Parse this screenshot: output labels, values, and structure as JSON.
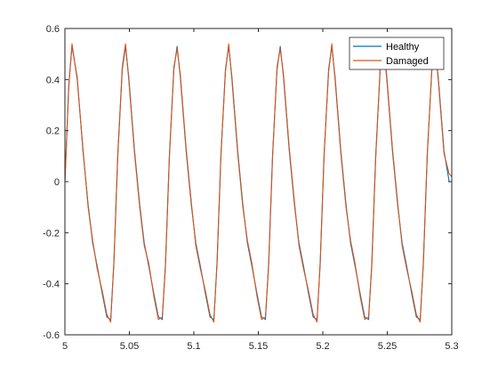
{
  "chart_data": {
    "type": "line",
    "title": "",
    "xlabel": "",
    "ylabel": "",
    "xlim": [
      5,
      5.3
    ],
    "ylim": [
      -0.6,
      0.6
    ],
    "x_ticks": [
      5,
      5.05,
      5.1,
      5.15,
      5.2,
      5.25,
      5.3
    ],
    "x_tick_labels": [
      "5",
      "5.05",
      "5.1",
      "5.15",
      "5.2",
      "5.25",
      "5.3"
    ],
    "y_ticks": [
      -0.6,
      -0.4,
      -0.2,
      0,
      0.2,
      0.4,
      0.6
    ],
    "y_tick_labels": [
      "-0.6",
      "-0.4",
      "-0.2",
      "0",
      "0.2",
      "0.4",
      "0.6"
    ],
    "grid": false,
    "legend_position": "top-right",
    "series": [
      {
        "name": "Healthy",
        "color": "#0072BD",
        "x": [
          5.0,
          5.003,
          5.0055,
          5.0095,
          5.014,
          5.018,
          5.0215,
          5.025,
          5.029,
          5.0325,
          5.0355,
          5.038,
          5.041,
          5.0445,
          5.047,
          5.0495,
          5.054,
          5.058,
          5.0615,
          5.065,
          5.069,
          5.0725,
          5.0755,
          5.078,
          5.081,
          5.0845,
          5.087,
          5.0895,
          5.094,
          5.098,
          5.1015,
          5.105,
          5.109,
          5.1125,
          5.1155,
          5.118,
          5.121,
          5.1245,
          5.127,
          5.1295,
          5.134,
          5.138,
          5.1415,
          5.145,
          5.149,
          5.1525,
          5.1555,
          5.158,
          5.161,
          5.1645,
          5.167,
          5.1695,
          5.174,
          5.178,
          5.1815,
          5.185,
          5.189,
          5.1925,
          5.1955,
          5.198,
          5.201,
          5.2045,
          5.207,
          5.2095,
          5.214,
          5.218,
          5.2215,
          5.225,
          5.229,
          5.2325,
          5.2355,
          5.238,
          5.241,
          5.2445,
          5.247,
          5.2495,
          5.254,
          5.258,
          5.2615,
          5.265,
          5.269,
          5.2725,
          5.2755,
          5.278,
          5.281,
          5.2845,
          5.287,
          5.2895,
          5.294,
          5.298,
          5.3
        ],
        "y": [
          0.0,
          0.38,
          0.53,
          0.41,
          0.12,
          -0.09,
          -0.24,
          -0.33,
          -0.44,
          -0.53,
          -0.54,
          -0.32,
          0.1,
          0.44,
          0.53,
          0.41,
          0.12,
          -0.09,
          -0.24,
          -0.33,
          -0.44,
          -0.53,
          -0.54,
          -0.32,
          0.1,
          0.44,
          0.53,
          0.41,
          0.12,
          -0.09,
          -0.24,
          -0.33,
          -0.44,
          -0.53,
          -0.54,
          -0.32,
          0.1,
          0.44,
          0.53,
          0.41,
          0.12,
          -0.09,
          -0.24,
          -0.33,
          -0.44,
          -0.53,
          -0.54,
          -0.32,
          0.1,
          0.44,
          0.53,
          0.41,
          0.12,
          -0.09,
          -0.24,
          -0.33,
          -0.44,
          -0.53,
          -0.54,
          -0.32,
          0.1,
          0.44,
          0.53,
          0.41,
          0.12,
          -0.09,
          -0.24,
          -0.33,
          -0.44,
          -0.53,
          -0.54,
          -0.32,
          0.1,
          0.44,
          0.53,
          0.41,
          0.12,
          -0.09,
          -0.24,
          -0.33,
          -0.44,
          -0.53,
          -0.54,
          -0.32,
          0.1,
          0.44,
          0.53,
          0.41,
          0.12,
          0.0,
          0.0
        ]
      },
      {
        "name": "Damaged",
        "color": "#D95319",
        "x": [
          5.0,
          5.003,
          5.0055,
          5.0095,
          5.014,
          5.018,
          5.0215,
          5.025,
          5.029,
          5.0325,
          5.0355,
          5.038,
          5.041,
          5.0445,
          5.047,
          5.0495,
          5.054,
          5.058,
          5.0615,
          5.065,
          5.069,
          5.0725,
          5.0755,
          5.078,
          5.081,
          5.0845,
          5.087,
          5.0895,
          5.094,
          5.098,
          5.1015,
          5.105,
          5.109,
          5.1125,
          5.1155,
          5.118,
          5.121,
          5.1245,
          5.127,
          5.1295,
          5.134,
          5.138,
          5.1415,
          5.145,
          5.149,
          5.1525,
          5.1555,
          5.158,
          5.161,
          5.1645,
          5.167,
          5.1695,
          5.174,
          5.178,
          5.1815,
          5.185,
          5.189,
          5.1925,
          5.1955,
          5.198,
          5.201,
          5.2045,
          5.207,
          5.2095,
          5.214,
          5.218,
          5.2215,
          5.225,
          5.229,
          5.2325,
          5.2355,
          5.238,
          5.241,
          5.2445,
          5.247,
          5.2495,
          5.254,
          5.258,
          5.2615,
          5.265,
          5.269,
          5.2725,
          5.2755,
          5.278,
          5.281,
          5.2845,
          5.287,
          5.2895,
          5.294,
          5.298,
          5.3
        ],
        "y": [
          0.0,
          0.37,
          0.54,
          0.4,
          0.13,
          -0.1,
          -0.23,
          -0.34,
          -0.43,
          -0.52,
          -0.55,
          -0.31,
          0.11,
          0.45,
          0.54,
          0.4,
          0.11,
          -0.1,
          -0.25,
          -0.32,
          -0.45,
          -0.54,
          -0.53,
          -0.33,
          0.09,
          0.45,
          0.52,
          0.42,
          0.13,
          -0.08,
          -0.25,
          -0.34,
          -0.43,
          -0.52,
          -0.55,
          -0.31,
          0.11,
          0.43,
          0.54,
          0.4,
          0.11,
          -0.1,
          -0.23,
          -0.32,
          -0.45,
          -0.54,
          -0.53,
          -0.33,
          0.09,
          0.45,
          0.52,
          0.42,
          0.13,
          -0.08,
          -0.25,
          -0.34,
          -0.43,
          -0.52,
          -0.55,
          -0.31,
          0.11,
          0.43,
          0.54,
          0.4,
          0.11,
          -0.1,
          -0.23,
          -0.32,
          -0.45,
          -0.54,
          -0.53,
          -0.33,
          0.09,
          0.45,
          0.52,
          0.42,
          0.13,
          -0.08,
          -0.25,
          -0.34,
          -0.43,
          -0.52,
          -0.55,
          -0.31,
          0.11,
          0.43,
          0.54,
          0.4,
          0.11,
          0.03,
          0.02
        ]
      }
    ]
  }
}
